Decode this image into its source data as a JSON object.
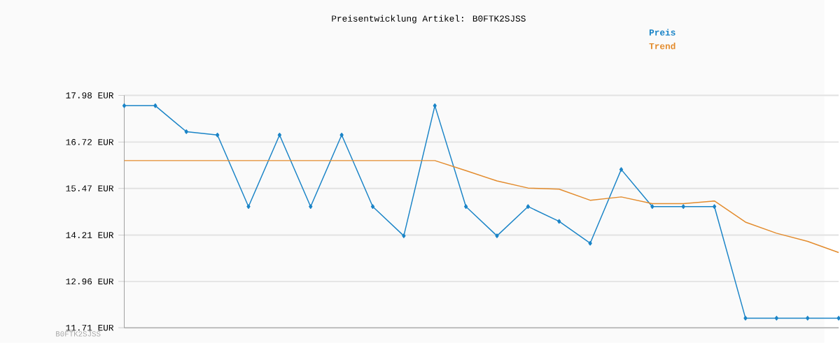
{
  "chart_data": {
    "type": "line",
    "title": "Preisentwicklung Artikel: B0FTK2SJSS",
    "categories": [
      null,
      null,
      null,
      null,
      null,
      null,
      null,
      null,
      null,
      null,
      null,
      null,
      null,
      null,
      null,
      null,
      null,
      null,
      null,
      null,
      null,
      null,
      null,
      null
    ],
    "series": [
      {
        "name": "Preis",
        "color": "#1a84c7",
        "marker": "diamond",
        "values": [
          17.7,
          17.7,
          17.0,
          16.91,
          14.98,
          16.91,
          14.98,
          16.91,
          14.98,
          14.19,
          17.7,
          14.98,
          14.19,
          14.98,
          14.58,
          13.99,
          15.98,
          14.98,
          14.98,
          14.98,
          11.97,
          11.97,
          11.97,
          11.97
        ]
      },
      {
        "name": "Trend",
        "color": "#e38b2c",
        "marker": "none",
        "values": [
          16.22,
          16.22,
          16.22,
          16.22,
          16.22,
          16.22,
          16.22,
          16.22,
          16.22,
          16.22,
          16.22,
          15.95,
          15.67,
          15.48,
          15.45,
          15.15,
          15.24,
          15.06,
          15.06,
          15.13,
          14.56,
          14.26,
          14.04,
          13.74
        ]
      }
    ],
    "ylim": [
      11.71,
      17.98
    ],
    "yticks": [
      {
        "value": 11.71,
        "label": "11.71 EUR"
      },
      {
        "value": 12.96,
        "label": "12.96 EUR"
      },
      {
        "value": 14.21,
        "label": "14.21 EUR"
      },
      {
        "value": 15.47,
        "label": "15.47 EUR"
      },
      {
        "value": 16.72,
        "label": "16.72 EUR"
      },
      {
        "value": 17.98,
        "label": "17.98 EUR"
      }
    ],
    "grid": "y",
    "legend": "top right",
    "line_style": "solid",
    "annotations": [
      "B0FTK2SJSS"
    ]
  }
}
